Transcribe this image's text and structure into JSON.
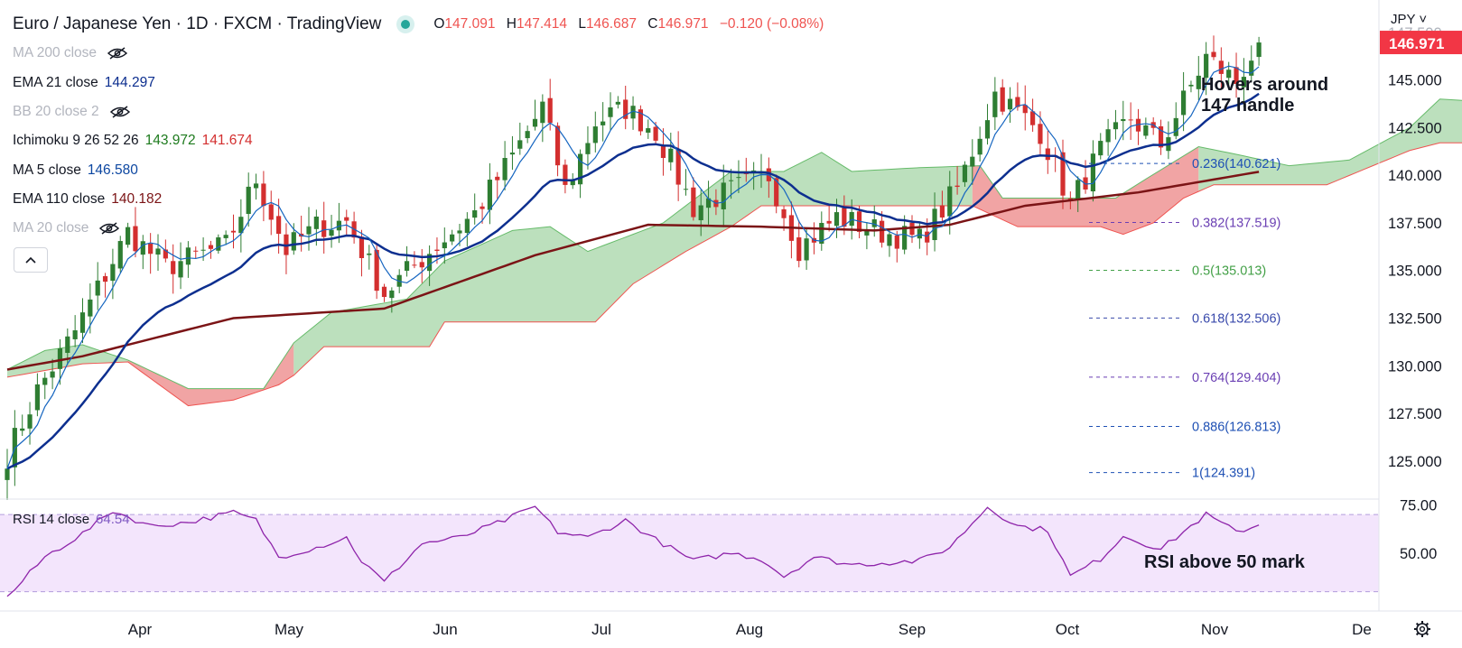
{
  "header": {
    "title": "Euro / Japanese Yen · 1D · FXCM · TradingView",
    "ohlc": {
      "o_label": "O",
      "o": "147.091",
      "h_label": "H",
      "h": "147.414",
      "l_label": "L",
      "l": "146.687",
      "c_label": "C",
      "c": "146.971",
      "change": "−0.120 (−0.08%)"
    },
    "status_color": "#26a69a"
  },
  "indicators": [
    {
      "label": "MA 200 close",
      "value": "",
      "hidden": true
    },
    {
      "label": "EMA 21 close",
      "value": "144.297",
      "color": "#0d2f8f"
    },
    {
      "label": "BB 20 close 2",
      "value": "",
      "hidden": true
    },
    {
      "label": "Ichimoku 9 26 52 26",
      "value": "143.972",
      "value2": "141.674",
      "color": "#1e7b1e",
      "color2": "#d32f2f"
    },
    {
      "label": "MA 5 close",
      "value": "146.580",
      "color": "#0d47a1"
    },
    {
      "label": "EMA 110 close",
      "value": "140.182",
      "color": "#7b1416"
    },
    {
      "label": "MA 20 close",
      "value": "",
      "hidden": true
    }
  ],
  "axis": {
    "currency": "JPY",
    "price_ticks": [
      "147.500",
      "145.000",
      "142.500",
      "140.000",
      "137.500",
      "135.000",
      "132.500",
      "130.000",
      "127.500",
      "125.000"
    ],
    "current_price": "146.971",
    "rsi_ticks": [
      "75.00",
      "50.00"
    ],
    "months": [
      "Apr",
      "May",
      "Jun",
      "Jul",
      "Aug",
      "Sep",
      "Oct",
      "Nov",
      "De"
    ]
  },
  "rsi": {
    "label": "RSI 14 close",
    "value": "64.54"
  },
  "annotations": {
    "price_note_line1": "Hovers around",
    "price_note_line2": "147 handle",
    "rsi_note": "RSI above 50 mark"
  },
  "chart_data": {
    "type": "candlestick",
    "title": "Euro / Japanese Yen · 1D · FXCM",
    "y_range": [
      123.0,
      149.2
    ],
    "x_labels": [
      "Apr",
      "May",
      "Jun",
      "Jul",
      "Aug",
      "Sep",
      "Oct",
      "Nov",
      "De"
    ],
    "close_anchors": [
      {
        "t": 0,
        "v": 125.3
      },
      {
        "t": 4,
        "v": 128.7
      },
      {
        "t": 9,
        "v": 131.8
      },
      {
        "t": 16,
        "v": 137.0
      },
      {
        "t": 21,
        "v": 135.2
      },
      {
        "t": 29,
        "v": 136.3
      },
      {
        "t": 33,
        "v": 139.8
      },
      {
        "t": 37,
        "v": 136.1
      },
      {
        "t": 41,
        "v": 137.3
      },
      {
        "t": 45,
        "v": 137.6
      },
      {
        "t": 50,
        "v": 133.8
      },
      {
        "t": 56,
        "v": 136.0
      },
      {
        "t": 62,
        "v": 138.0
      },
      {
        "t": 67,
        "v": 141.0
      },
      {
        "t": 71,
        "v": 143.6
      },
      {
        "t": 74,
        "v": 139.2
      },
      {
        "t": 78,
        "v": 142.8
      },
      {
        "t": 82,
        "v": 143.5
      },
      {
        "t": 86,
        "v": 142.3
      },
      {
        "t": 91,
        "v": 138.3
      },
      {
        "t": 96,
        "v": 139.2
      },
      {
        "t": 101,
        "v": 140.0
      },
      {
        "t": 105,
        "v": 136.2
      },
      {
        "t": 110,
        "v": 137.8
      },
      {
        "t": 116,
        "v": 137.0
      },
      {
        "t": 121,
        "v": 136.6
      },
      {
        "t": 126,
        "v": 139.3
      },
      {
        "t": 131,
        "v": 144.3
      },
      {
        "t": 137,
        "v": 142.3
      },
      {
        "t": 141,
        "v": 138.5
      },
      {
        "t": 145,
        "v": 141.3
      },
      {
        "t": 149,
        "v": 143.0
      },
      {
        "t": 153,
        "v": 141.6
      },
      {
        "t": 159,
        "v": 146.2
      },
      {
        "t": 163,
        "v": 144.9
      },
      {
        "t": 166,
        "v": 146.97
      }
    ],
    "ema110_anchors": [
      {
        "t": 0,
        "v": 129.8
      },
      {
        "t": 10,
        "v": 130.5
      },
      {
        "t": 30,
        "v": 132.5
      },
      {
        "t": 50,
        "v": 133.0
      },
      {
        "t": 70,
        "v": 135.8
      },
      {
        "t": 85,
        "v": 137.4
      },
      {
        "t": 100,
        "v": 137.3
      },
      {
        "t": 115,
        "v": 137.1
      },
      {
        "t": 125,
        "v": 137.4
      },
      {
        "t": 135,
        "v": 138.4
      },
      {
        "t": 150,
        "v": 139.1
      },
      {
        "t": 166,
        "v": 140.182
      }
    ],
    "cloud_top_anchors": [
      {
        "t": 0,
        "v": 129.8
      },
      {
        "t": 5,
        "v": 130.8
      },
      {
        "t": 10,
        "v": 131.1
      },
      {
        "t": 16,
        "v": 130.3
      },
      {
        "t": 24,
        "v": 128.8
      },
      {
        "t": 34,
        "v": 128.8
      },
      {
        "t": 38,
        "v": 131.2
      },
      {
        "t": 43,
        "v": 132.8
      },
      {
        "t": 53,
        "v": 133.5
      },
      {
        "t": 58,
        "v": 135.5
      },
      {
        "t": 67,
        "v": 137.1
      },
      {
        "t": 72,
        "v": 137.3
      },
      {
        "t": 77,
        "v": 136.0
      },
      {
        "t": 87,
        "v": 137.5
      },
      {
        "t": 96,
        "v": 140.2
      },
      {
        "t": 103,
        "v": 140.2
      },
      {
        "t": 108,
        "v": 141.2
      },
      {
        "t": 112,
        "v": 140.2
      },
      {
        "t": 121,
        "v": 140.4
      },
      {
        "t": 129,
        "v": 140.5
      },
      {
        "t": 132,
        "v": 138.8
      },
      {
        "t": 147,
        "v": 138.8
      },
      {
        "t": 151,
        "v": 139.8
      },
      {
        "t": 158,
        "v": 141.5
      },
      {
        "t": 163,
        "v": 141.1
      },
      {
        "t": 170,
        "v": 140.5
      },
      {
        "t": 178,
        "v": 140.8
      },
      {
        "t": 186,
        "v": 142.5
      },
      {
        "t": 190,
        "v": 144.0
      },
      {
        "t": 194,
        "v": 143.9
      }
    ],
    "cloud_bottom_anchors": [
      {
        "t": 0,
        "v": 129.4
      },
      {
        "t": 10,
        "v": 130.1
      },
      {
        "t": 16,
        "v": 130.2
      },
      {
        "t": 24,
        "v": 127.9
      },
      {
        "t": 30,
        "v": 128.2
      },
      {
        "t": 36,
        "v": 129.0
      },
      {
        "t": 38,
        "v": 129.5
      },
      {
        "t": 42,
        "v": 131.0
      },
      {
        "t": 56,
        "v": 131.0
      },
      {
        "t": 58,
        "v": 132.3
      },
      {
        "t": 78,
        "v": 132.3
      },
      {
        "t": 83,
        "v": 134.3
      },
      {
        "t": 90,
        "v": 136.0
      },
      {
        "t": 96,
        "v": 137.3
      },
      {
        "t": 100,
        "v": 138.4
      },
      {
        "t": 128,
        "v": 138.4
      },
      {
        "t": 134,
        "v": 137.3
      },
      {
        "t": 145,
        "v": 137.3
      },
      {
        "t": 148,
        "v": 136.9
      },
      {
        "t": 152,
        "v": 137.5
      },
      {
        "t": 156,
        "v": 138.8
      },
      {
        "t": 160,
        "v": 139.5
      },
      {
        "t": 175,
        "v": 139.5
      },
      {
        "t": 186,
        "v": 141.3
      },
      {
        "t": 190,
        "v": 141.7
      },
      {
        "t": 194,
        "v": 141.7
      }
    ],
    "rsi_anchors": [
      {
        "t": 0,
        "v": 27
      },
      {
        "t": 5,
        "v": 48
      },
      {
        "t": 10,
        "v": 60
      },
      {
        "t": 14,
        "v": 72
      },
      {
        "t": 19,
        "v": 64
      },
      {
        "t": 24,
        "v": 66
      },
      {
        "t": 30,
        "v": 71
      },
      {
        "t": 33,
        "v": 67
      },
      {
        "t": 36,
        "v": 48
      },
      {
        "t": 41,
        "v": 53
      },
      {
        "t": 45,
        "v": 58
      },
      {
        "t": 47,
        "v": 46
      },
      {
        "t": 50,
        "v": 35
      },
      {
        "t": 55,
        "v": 55
      },
      {
        "t": 60,
        "v": 58
      },
      {
        "t": 66,
        "v": 67
      },
      {
        "t": 70,
        "v": 74
      },
      {
        "t": 73,
        "v": 61
      },
      {
        "t": 77,
        "v": 58
      },
      {
        "t": 82,
        "v": 67
      },
      {
        "t": 86,
        "v": 57
      },
      {
        "t": 91,
        "v": 46
      },
      {
        "t": 96,
        "v": 50
      },
      {
        "t": 100,
        "v": 47
      },
      {
        "t": 103,
        "v": 38
      },
      {
        "t": 107,
        "v": 48
      },
      {
        "t": 112,
        "v": 44
      },
      {
        "t": 116,
        "v": 45
      },
      {
        "t": 121,
        "v": 46
      },
      {
        "t": 125,
        "v": 53
      },
      {
        "t": 130,
        "v": 74
      },
      {
        "t": 134,
        "v": 64
      },
      {
        "t": 138,
        "v": 62
      },
      {
        "t": 141,
        "v": 38
      },
      {
        "t": 145,
        "v": 47
      },
      {
        "t": 148,
        "v": 59
      },
      {
        "t": 153,
        "v": 52
      },
      {
        "t": 159,
        "v": 70
      },
      {
        "t": 163,
        "v": 61
      },
      {
        "t": 166,
        "v": 64.54
      }
    ],
    "fibonacci": [
      {
        "label": "0.236(140.621)",
        "level": 140.621,
        "color": "#1e50b4"
      },
      {
        "label": "0.382(137.519)",
        "level": 137.519,
        "color": "#6a3fb3"
      },
      {
        "label": "0.5(135.013)",
        "level": 135.013,
        "color": "#43a047"
      },
      {
        "label": "0.618(132.506)",
        "level": 132.506,
        "color": "#3949ab"
      },
      {
        "label": "0.764(129.404)",
        "level": 129.404,
        "color": "#6a3fb3"
      },
      {
        "label": "0.886(126.813)",
        "level": 126.813,
        "color": "#1e50b4"
      },
      {
        "label": "1(124.391)",
        "level": 124.391,
        "color": "#1e50b4"
      }
    ],
    "rsi_range": [
      20,
      78
    ],
    "rsi_band": [
      30,
      70
    ],
    "colors": {
      "up": "#26a69a",
      "up_body": "#2e7d32",
      "down": "#d32f2f",
      "ma5": "#1565c0",
      "ema21": "#0d2f8f",
      "ema110": "#7b1416",
      "cloud_bull": "#a5d6a7",
      "cloud_bear": "#ef9a9a",
      "rsi": "#8e24aa",
      "rsi_band": "#f3e5fc"
    }
  }
}
